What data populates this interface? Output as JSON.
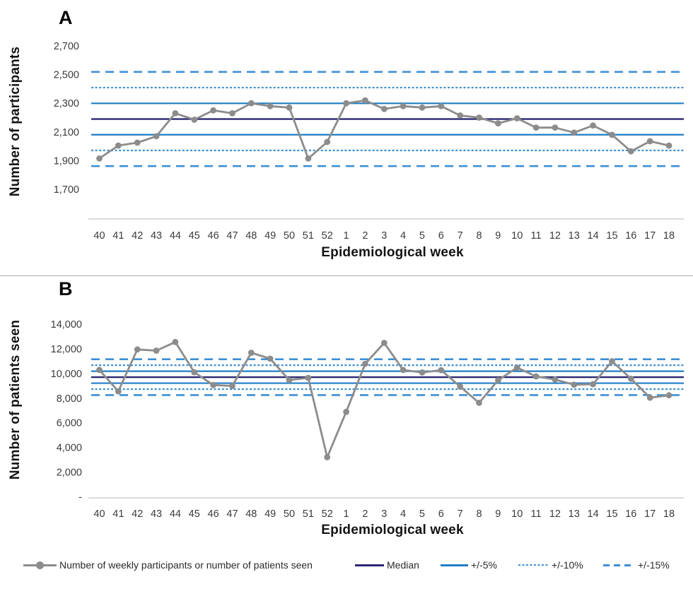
{
  "colors": {
    "series": "#8C8C8C",
    "median": "#2B2875",
    "control_solid": "#1F7EC5",
    "control_light": "#3E8FD4",
    "axis_line": "#D0D0D0",
    "divider": "#ABABAB",
    "tick_text": "#3B3B3B"
  },
  "legend": {
    "items": [
      {
        "label": "Number of weekly participants or number of patients seen",
        "swatch": "gray-line-marker"
      },
      {
        "label": "Median",
        "swatch": "navy-solid-line"
      },
      {
        "label": "+/-5%",
        "swatch": "blue-solid-line"
      },
      {
        "label": "+/-10%",
        "swatch": "blue-dotted-line"
      },
      {
        "label": "+/-15%",
        "swatch": "blue-dashed-line"
      }
    ]
  },
  "chart_data": [
    {
      "panel": "A",
      "type": "line",
      "title": "",
      "xlabel": "Epidemiological week",
      "ylabel": "Number of participants",
      "categories": [
        "40",
        "41",
        "42",
        "43",
        "44",
        "45",
        "46",
        "47",
        "48",
        "49",
        "50",
        "51",
        "52",
        "1",
        "2",
        "3",
        "4",
        "5",
        "6",
        "7",
        "8",
        "9",
        "10",
        "11",
        "12",
        "13",
        "14",
        "15",
        "16",
        "17",
        "18"
      ],
      "series": [
        {
          "name": "Number of weekly participants or number of patients seen",
          "values": [
            1915,
            2005,
            2025,
            2070,
            2230,
            2185,
            2250,
            2230,
            2300,
            2280,
            2270,
            1915,
            2030,
            2300,
            2320,
            2260,
            2280,
            2270,
            2280,
            2215,
            2200,
            2160,
            2195,
            2130,
            2130,
            2095,
            2145,
            2080,
            1965,
            2035,
            2005
          ]
        }
      ],
      "median": 2190,
      "control_limits_pct": [
        5,
        10,
        15
      ],
      "ylim": [
        1700,
        2700
      ],
      "yticks": [
        2700,
        2500,
        2300,
        2100,
        1900,
        1700
      ],
      "grid": "off",
      "legend_position": "bottom"
    },
    {
      "panel": "B",
      "type": "line",
      "title": "",
      "xlabel": "Epidemiological week",
      "ylabel": "Number of patients seen",
      "categories": [
        "40",
        "41",
        "42",
        "43",
        "44",
        "45",
        "46",
        "47",
        "48",
        "49",
        "50",
        "51",
        "52",
        "1",
        "2",
        "3",
        "4",
        "5",
        "6",
        "7",
        "8",
        "9",
        "10",
        "11",
        "12",
        "13",
        "14",
        "15",
        "16",
        "17",
        "18"
      ],
      "series": [
        {
          "name": "Number of weekly participants or number of patients seen",
          "values": [
            10290,
            8550,
            11950,
            11850,
            12550,
            10100,
            9060,
            8990,
            11680,
            11200,
            9470,
            9640,
            3210,
            6890,
            10780,
            12480,
            10280,
            10080,
            10270,
            8940,
            7620,
            9450,
            10480,
            9760,
            9510,
            9090,
            9130,
            10990,
            9570,
            8040,
            8230
          ]
        }
      ],
      "median": 9700,
      "control_limits_pct": [
        5,
        10,
        15
      ],
      "ylim": [
        0,
        14000
      ],
      "yticks": [
        14000,
        12000,
        10000,
        8000,
        6000,
        4000,
        2000,
        0
      ],
      "ytick_zero_label": "-",
      "grid": "off",
      "legend_position": "bottom"
    }
  ]
}
